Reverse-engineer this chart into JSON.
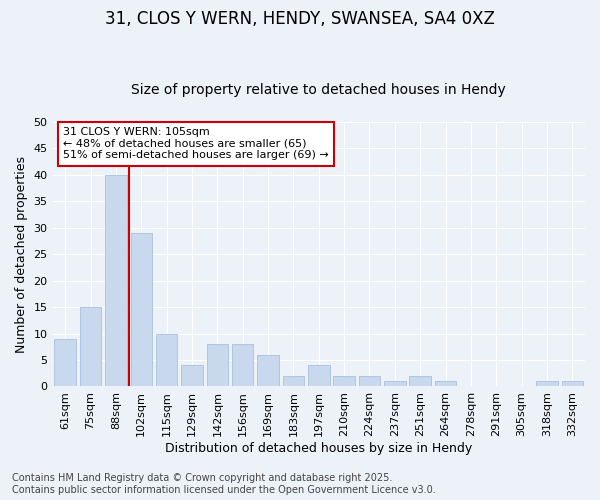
{
  "title1": "31, CLOS Y WERN, HENDY, SWANSEA, SA4 0XZ",
  "title2": "Size of property relative to detached houses in Hendy",
  "xlabel": "Distribution of detached houses by size in Hendy",
  "ylabel": "Number of detached properties",
  "categories": [
    "61sqm",
    "75sqm",
    "88sqm",
    "102sqm",
    "115sqm",
    "129sqm",
    "142sqm",
    "156sqm",
    "169sqm",
    "183sqm",
    "197sqm",
    "210sqm",
    "224sqm",
    "237sqm",
    "251sqm",
    "264sqm",
    "278sqm",
    "291sqm",
    "305sqm",
    "318sqm",
    "332sqm"
  ],
  "values": [
    9,
    15,
    40,
    29,
    10,
    4,
    8,
    8,
    6,
    2,
    4,
    2,
    2,
    1,
    2,
    1,
    0,
    0,
    0,
    1,
    1
  ],
  "bar_color": "#c8d9ee",
  "bar_edge_color": "#a8c0de",
  "vline_x_index": 3,
  "vline_color": "#cc0000",
  "annotation_text": "31 CLOS Y WERN: 105sqm\n← 48% of detached houses are smaller (65)\n51% of semi-detached houses are larger (69) →",
  "annotation_box_color": "#ffffff",
  "annotation_box_edge": "#cc0000",
  "ylim": [
    0,
    50
  ],
  "yticks": [
    0,
    5,
    10,
    15,
    20,
    25,
    30,
    35,
    40,
    45,
    50
  ],
  "bg_color": "#edf1f8",
  "plot_bg_color": "#edf1f8",
  "footer_text": "Contains HM Land Registry data © Crown copyright and database right 2025.\nContains public sector information licensed under the Open Government Licence v3.0.",
  "title1_fontsize": 12,
  "title2_fontsize": 10,
  "grid_color": "#ffffff",
  "axis_label_fontsize": 9,
  "tick_label_fontsize": 8,
  "footer_fontsize": 7
}
